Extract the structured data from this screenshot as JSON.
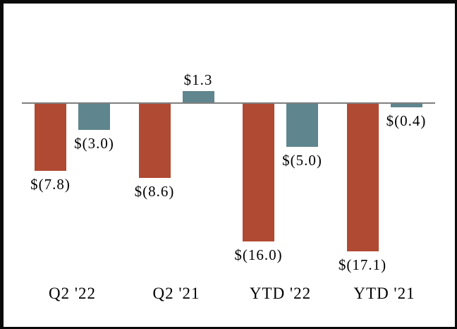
{
  "chart_data": {
    "type": "bar",
    "categories": [
      "Q2 '22",
      "Q2 '21",
      "YTD '22",
      "YTD '21"
    ],
    "series": [
      {
        "color": "#b04a33",
        "values": [
          -7.8,
          -8.6,
          -16.0,
          -17.1
        ],
        "data_labels": [
          "$(7.8)",
          "$(8.6)",
          "$(16.0)",
          "$(17.1)"
        ]
      },
      {
        "color": "#5f868e",
        "values": [
          -3.0,
          1.3,
          -5.0,
          -0.4
        ],
        "data_labels": [
          "$(3.0)",
          "$1.3",
          "$(5.0)",
          "$(0.4)"
        ]
      }
    ],
    "title": "",
    "xlabel": "",
    "ylabel": "",
    "ylim": [
      -20.5,
      11.5
    ],
    "grid": false,
    "legend_visible": false,
    "zero_line_color": "#7f7f7f",
    "frame_border_color": "#0a0a0a",
    "label_color": "#000000"
  }
}
